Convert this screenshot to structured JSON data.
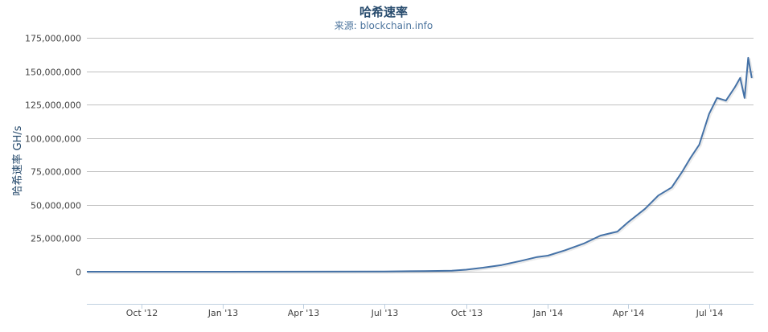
{
  "chart_data": {
    "type": "line",
    "title": "哈希速率",
    "subtitle": "来源: blockchain.info",
    "xlabel": "",
    "ylabel": "哈希速率 GH/s",
    "xlim": [
      "2012-08-01",
      "2014-08-20"
    ],
    "ylim": [
      0,
      175000000
    ],
    "y_ticks": [
      0,
      25000000,
      50000000,
      75000000,
      100000000,
      125000000,
      150000000,
      175000000
    ],
    "y_tick_labels": [
      "0",
      "25,000,000",
      "50,000,000",
      "75,000,000",
      "100,000,000",
      "125,000,000",
      "150,000,000",
      "175,000,000"
    ],
    "x_ticks": [
      "2012-10-01",
      "2013-01-01",
      "2013-04-01",
      "2013-07-01",
      "2013-10-01",
      "2014-01-01",
      "2014-04-01",
      "2014-07-01"
    ],
    "x_tick_labels": [
      "Oct '12",
      "Jan '13",
      "Apr '13",
      "Jul '13",
      "Oct '13",
      "Jan '14",
      "Apr '14",
      "Jul '14"
    ],
    "grid": true,
    "legend": "none",
    "color": "#4572a7",
    "series": [
      {
        "x": [
          "2012-08-01",
          "2012-10-01",
          "2013-01-01",
          "2013-04-01",
          "2013-07-01",
          "2013-08-15",
          "2013-09-15",
          "2013-10-01",
          "2013-10-20",
          "2013-11-10",
          "2013-12-01",
          "2013-12-20",
          "2014-01-01",
          "2014-01-20",
          "2014-02-10",
          "2014-03-01",
          "2014-03-20",
          "2014-04-01",
          "2014-04-20",
          "2014-05-05",
          "2014-05-20",
          "2014-06-01",
          "2014-06-10",
          "2014-06-20",
          "2014-07-01",
          "2014-07-10",
          "2014-07-20",
          "2014-07-30",
          "2014-08-05",
          "2014-08-10",
          "2014-08-14",
          "2014-08-18"
        ],
        "y": [
          20000,
          25000,
          30000,
          80000,
          200000,
          500000,
          800000,
          1500000,
          3000000,
          5000000,
          8000000,
          11000000,
          12000000,
          16000000,
          21000000,
          27000000,
          30000000,
          37000000,
          47000000,
          57000000,
          63000000,
          75000000,
          85000000,
          95000000,
          118000000,
          130000000,
          128000000,
          138000000,
          145000000,
          130000000,
          160000000,
          145000000
        ]
      }
    ]
  }
}
